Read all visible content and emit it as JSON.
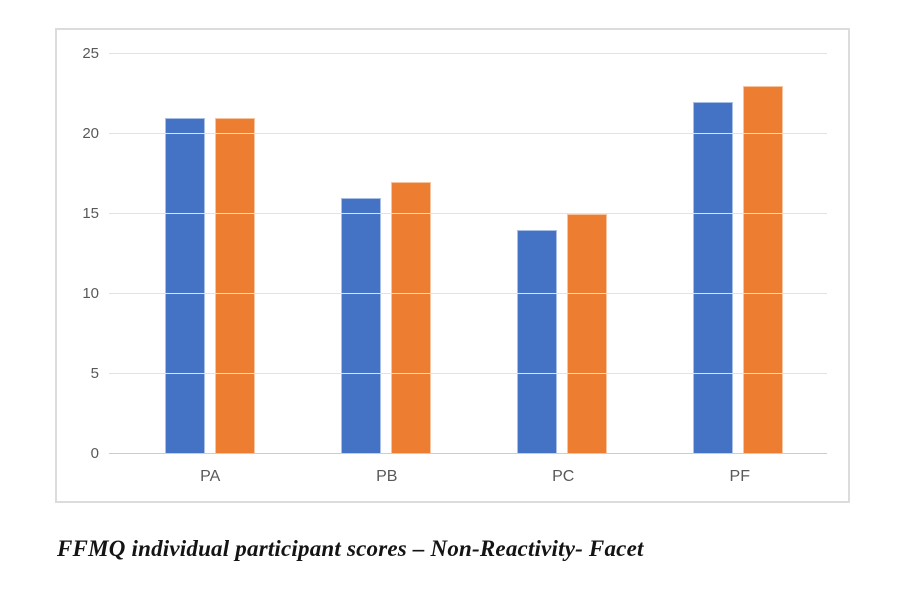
{
  "caption": "FFMQ individual participant scores – Non-Reactivity- Facet",
  "chart_data": {
    "type": "bar",
    "title": "",
    "xlabel": "",
    "ylabel": "",
    "categories": [
      "PA",
      "PB",
      "PC",
      "PF"
    ],
    "series": [
      {
        "name": "series-1",
        "color": "#4472C4",
        "values": [
          21,
          16,
          14,
          22
        ]
      },
      {
        "name": "series-2",
        "color": "#ED7D31",
        "values": [
          21,
          17,
          15,
          23
        ]
      }
    ],
    "ylim": [
      0,
      25
    ],
    "yticks": [
      0,
      5,
      10,
      15,
      20,
      25
    ],
    "grid": true,
    "legend_position": "none"
  }
}
